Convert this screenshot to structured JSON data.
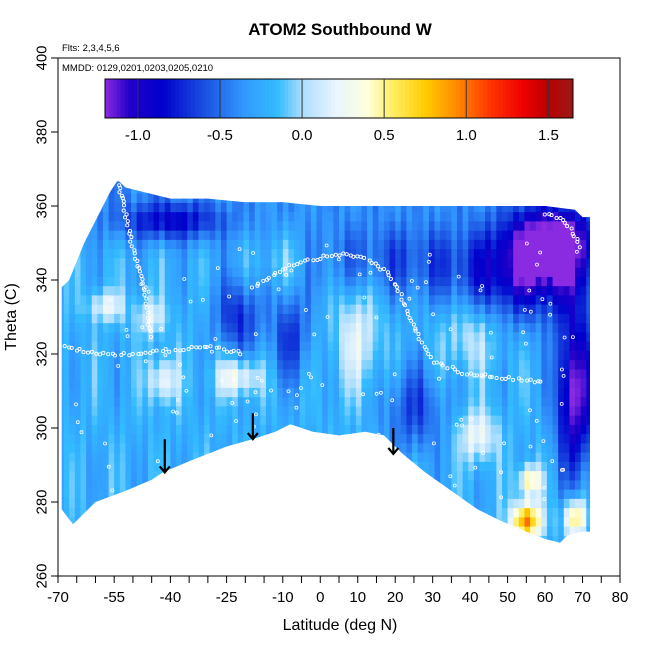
{
  "chart_data": {
    "type": "heatmap",
    "title": "ATOM2 Southbound W",
    "flights_note": "Flts: 2,3,4,5,6",
    "dates_note": "MMDD: 0129,0201,0203,0205,0210",
    "xlabel": "Latitude (deg N)",
    "ylabel": "Theta (C)",
    "xlim": [
      -70,
      80
    ],
    "ylim": [
      260,
      400
    ],
    "x_ticks": [
      -70,
      -55,
      -40,
      -25,
      -10,
      0,
      10,
      20,
      30,
      40,
      50,
      60,
      70,
      80
    ],
    "x_minor_ticks": [
      -65,
      -60,
      -50,
      -45,
      -35,
      -30,
      -20,
      -15,
      -5,
      5,
      15,
      25,
      35,
      45,
      55,
      65,
      75
    ],
    "y_ticks": [
      260,
      280,
      300,
      320,
      340,
      360,
      380,
      400
    ],
    "colorbar": {
      "range": [
        -1.2,
        1.65
      ],
      "ticks": [
        -1.0,
        -0.5,
        0.0,
        0.5,
        1.0,
        1.5
      ],
      "tick_labels": [
        "-1.0",
        "-0.5",
        "0.0",
        "0.5",
        "1.0",
        "1.5"
      ],
      "stops": [
        {
          "v": -1.2,
          "color": "#8a2be2"
        },
        {
          "v": -1.05,
          "color": "#2200c8"
        },
        {
          "v": -0.85,
          "color": "#0000cc"
        },
        {
          "v": -0.6,
          "color": "#1a4fe0"
        },
        {
          "v": -0.35,
          "color": "#3399ff"
        },
        {
          "v": -0.15,
          "color": "#33bbff"
        },
        {
          "v": 0.0,
          "color": "#aaddff"
        },
        {
          "v": 0.2,
          "color": "#e8f4ff"
        },
        {
          "v": 0.4,
          "color": "#ffffdd"
        },
        {
          "v": 0.55,
          "color": "#ffee66"
        },
        {
          "v": 0.75,
          "color": "#ffcc00"
        },
        {
          "v": 0.95,
          "color": "#ff8800"
        },
        {
          "v": 1.15,
          "color": "#ff3300"
        },
        {
          "v": 1.35,
          "color": "#ee0000"
        },
        {
          "v": 1.5,
          "color": "#bb0000"
        },
        {
          "v": 1.65,
          "color": "#991a1a"
        }
      ]
    },
    "field": {
      "top_boundary": [
        [
          -69,
          338
        ],
        [
          -67,
          340
        ],
        [
          -63,
          350
        ],
        [
          -60,
          356
        ],
        [
          -56,
          364
        ],
        [
          -54,
          367
        ],
        [
          -52,
          365
        ],
        [
          -48,
          364
        ],
        [
          -40,
          362
        ],
        [
          -30,
          362
        ],
        [
          -20,
          361
        ],
        [
          -10,
          361
        ],
        [
          0,
          360
        ],
        [
          10,
          360
        ],
        [
          20,
          360
        ],
        [
          30,
          360
        ],
        [
          40,
          360
        ],
        [
          50,
          360
        ],
        [
          60,
          360
        ],
        [
          68,
          359
        ],
        [
          70,
          357
        ]
      ],
      "bottom_boundary": [
        [
          -69,
          278
        ],
        [
          -66,
          274
        ],
        [
          -60,
          280
        ],
        [
          -52,
          283
        ],
        [
          -45,
          286
        ],
        [
          -42,
          288
        ],
        [
          -35,
          291
        ],
        [
          -25,
          295
        ],
        [
          -18,
          297
        ],
        [
          -12,
          299
        ],
        [
          -8,
          301
        ],
        [
          -2,
          299
        ],
        [
          5,
          298
        ],
        [
          12,
          299
        ],
        [
          17,
          298
        ],
        [
          22,
          293
        ],
        [
          28,
          288
        ],
        [
          35,
          283
        ],
        [
          42,
          278
        ],
        [
          48,
          275
        ],
        [
          55,
          272
        ],
        [
          60,
          270
        ],
        [
          64,
          269
        ],
        [
          66,
          271
        ],
        [
          70,
          272
        ],
        [
          72,
          272
        ]
      ],
      "right_edge_top": 357,
      "anomalies": [
        {
          "x": 62,
          "y": 350,
          "sx": 12,
          "sy": 10,
          "v": -1.05
        },
        {
          "x": 55,
          "y": 340,
          "sx": 18,
          "sy": 12,
          "v": -0.6
        },
        {
          "x": 68,
          "y": 310,
          "sx": 5,
          "sy": 22,
          "v": -1.0
        },
        {
          "x": 20,
          "y": 345,
          "sx": 30,
          "sy": 10,
          "v": -0.35
        },
        {
          "x": -40,
          "y": 356,
          "sx": 14,
          "sy": 5,
          "v": -0.55
        },
        {
          "x": -22,
          "y": 330,
          "sx": 6,
          "sy": 10,
          "v": -0.5
        },
        {
          "x": -8,
          "y": 325,
          "sx": 5,
          "sy": 12,
          "v": -0.45
        },
        {
          "x": 25,
          "y": 305,
          "sx": 8,
          "sy": 12,
          "v": -0.4
        },
        {
          "x": 55,
          "y": 275,
          "sx": 4,
          "sy": 5,
          "v": 1.2
        },
        {
          "x": 68,
          "y": 276,
          "sx": 3,
          "sy": 5,
          "v": 0.9
        },
        {
          "x": 56,
          "y": 286,
          "sx": 3,
          "sy": 4,
          "v": 0.8
        },
        {
          "x": 42,
          "y": 298,
          "sx": 5,
          "sy": 7,
          "v": 0.5
        },
        {
          "x": -22,
          "y": 314,
          "sx": 6,
          "sy": 5,
          "v": 0.55
        },
        {
          "x": -42,
          "y": 313,
          "sx": 4,
          "sy": 6,
          "v": 0.5
        },
        {
          "x": -57,
          "y": 333,
          "sx": 5,
          "sy": 4,
          "v": 0.45
        },
        {
          "x": -45,
          "y": 330,
          "sx": 4,
          "sy": 5,
          "v": 0.4
        },
        {
          "x": 10,
          "y": 325,
          "sx": 6,
          "sy": 15,
          "v": 0.4
        },
        {
          "x": 40,
          "y": 325,
          "sx": 8,
          "sy": 10,
          "v": 0.3
        },
        {
          "x": -10,
          "y": 345,
          "sx": 8,
          "sy": 8,
          "v": 0.25
        }
      ]
    },
    "flight_tracks": [
      [
        [
          -54,
          367
        ],
        [
          -52,
          358
        ],
        [
          -50,
          348
        ],
        [
          -47,
          338
        ],
        [
          -46,
          330
        ],
        [
          -45,
          324
        ]
      ],
      [
        [
          -18,
          338
        ],
        [
          -10,
          343
        ],
        [
          -5,
          345
        ],
        [
          5,
          347
        ],
        [
          12,
          346
        ],
        [
          18,
          342
        ],
        [
          22,
          335
        ],
        [
          26,
          325
        ],
        [
          30,
          318
        ],
        [
          38,
          315
        ],
        [
          45,
          314
        ],
        [
          55,
          313
        ],
        [
          60,
          312
        ]
      ],
      [
        [
          -68,
          322
        ],
        [
          -60,
          320
        ],
        [
          -50,
          320
        ],
        [
          -40,
          321
        ],
        [
          -30,
          322
        ],
        [
          -20,
          320
        ]
      ],
      [
        [
          60,
          358
        ],
        [
          65,
          356
        ],
        [
          68,
          352
        ],
        [
          70,
          348
        ]
      ]
    ],
    "arrows": [
      {
        "x": -41.5,
        "y_top": 297,
        "y_bottom": 288
      },
      {
        "x": -18,
        "y_top": 304,
        "y_bottom": 297
      },
      {
        "x": 19.5,
        "y_top": 300,
        "y_bottom": 293
      }
    ]
  }
}
